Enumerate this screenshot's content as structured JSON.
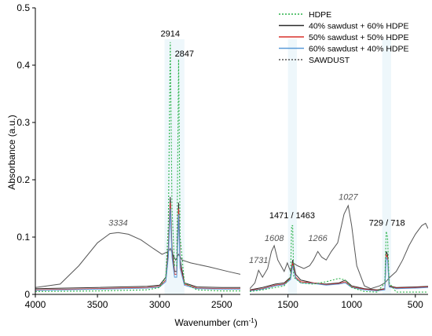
{
  "chart_data": {
    "type": "line",
    "xlabel": "Wavenumber (cm",
    "xlabel_sup": "-1",
    "xlabel_end": ")",
    "ylabel": "Absorbance (a.u.)",
    "ylim": [
      0,
      0.5
    ],
    "y_ticks": [
      "0",
      "0.1",
      "0.2",
      "0.3",
      "0.4",
      "0.5"
    ],
    "y_tick_values": [
      0,
      0.1,
      0.2,
      0.3,
      0.4,
      0.5
    ],
    "x_axis_reversed": true,
    "panels": [
      {
        "xlim": [
          4000,
          2350
        ],
        "x_ticks": [
          "4000",
          "3500",
          "3000",
          "2500"
        ],
        "x_tick_values": [
          4000,
          3500,
          3000,
          2500
        ]
      },
      {
        "xlim": [
          1800,
          400
        ],
        "x_ticks": [
          "1500",
          "1000",
          "500"
        ],
        "x_tick_values": [
          1500,
          1000,
          500
        ]
      }
    ],
    "legend_position": "top-right",
    "series": [
      {
        "name": "HDPE",
        "color": "#2bb24a",
        "dash": "dotted",
        "points": [
          [
            4000,
            0.005
          ],
          [
            3500,
            0.006
          ],
          [
            3100,
            0.008
          ],
          [
            3000,
            0.012
          ],
          [
            2950,
            0.03
          ],
          [
            2930,
            0.12
          ],
          [
            2914,
            0.44
          ],
          [
            2900,
            0.15
          ],
          [
            2880,
            0.05
          ],
          [
            2862,
            0.05
          ],
          [
            2847,
            0.41
          ],
          [
            2835,
            0.1
          ],
          [
            2800,
            0.02
          ],
          [
            2700,
            0.008
          ],
          [
            2500,
            0.006
          ],
          [
            2350,
            0.006
          ],
          [
            1800,
            0.005
          ],
          [
            1700,
            0.008
          ],
          [
            1600,
            0.012
          ],
          [
            1530,
            0.015
          ],
          [
            1480,
            0.03
          ],
          [
            1471,
            0.12
          ],
          [
            1463,
            0.12
          ],
          [
            1455,
            0.03
          ],
          [
            1400,
            0.02
          ],
          [
            1300,
            0.018
          ],
          [
            1200,
            0.022
          ],
          [
            1100,
            0.028
          ],
          [
            1050,
            0.025
          ],
          [
            1000,
            0.012
          ],
          [
            900,
            0.005
          ],
          [
            800,
            0.004
          ],
          [
            740,
            0.02
          ],
          [
            729,
            0.11
          ],
          [
            718,
            0.1
          ],
          [
            705,
            0.02
          ],
          [
            650,
            0.004
          ],
          [
            500,
            0.004
          ],
          [
            400,
            0.004
          ]
        ]
      },
      {
        "name": "40% sawdust + 60% HDPE",
        "color": "#2b2b2b",
        "dash": "solid",
        "points": [
          [
            4000,
            0.01
          ],
          [
            3500,
            0.012
          ],
          [
            3100,
            0.014
          ],
          [
            3000,
            0.016
          ],
          [
            2950,
            0.03
          ],
          [
            2930,
            0.08
          ],
          [
            2914,
            0.17
          ],
          [
            2900,
            0.08
          ],
          [
            2880,
            0.04
          ],
          [
            2862,
            0.04
          ],
          [
            2847,
            0.16
          ],
          [
            2835,
            0.06
          ],
          [
            2800,
            0.02
          ],
          [
            2700,
            0.013
          ],
          [
            2500,
            0.012
          ],
          [
            2350,
            0.012
          ],
          [
            1800,
            0.008
          ],
          [
            1700,
            0.012
          ],
          [
            1600,
            0.018
          ],
          [
            1530,
            0.02
          ],
          [
            1480,
            0.03
          ],
          [
            1463,
            0.06
          ],
          [
            1440,
            0.035
          ],
          [
            1400,
            0.025
          ],
          [
            1300,
            0.02
          ],
          [
            1200,
            0.018
          ],
          [
            1100,
            0.02
          ],
          [
            1050,
            0.025
          ],
          [
            1000,
            0.015
          ],
          [
            900,
            0.01
          ],
          [
            800,
            0.008
          ],
          [
            740,
            0.01
          ],
          [
            729,
            0.075
          ],
          [
            718,
            0.07
          ],
          [
            705,
            0.015
          ],
          [
            650,
            0.012
          ],
          [
            500,
            0.013
          ],
          [
            400,
            0.014
          ]
        ]
      },
      {
        "name": "50% sawdust + 50% HDPE",
        "color": "#d9302a",
        "dash": "solid",
        "points": [
          [
            4000,
            0.008
          ],
          [
            3500,
            0.01
          ],
          [
            3100,
            0.012
          ],
          [
            3000,
            0.014
          ],
          [
            2950,
            0.025
          ],
          [
            2930,
            0.07
          ],
          [
            2914,
            0.16
          ],
          [
            2900,
            0.07
          ],
          [
            2880,
            0.035
          ],
          [
            2862,
            0.035
          ],
          [
            2847,
            0.15
          ],
          [
            2835,
            0.05
          ],
          [
            2800,
            0.018
          ],
          [
            2700,
            0.011
          ],
          [
            2500,
            0.01
          ],
          [
            2350,
            0.01
          ],
          [
            1800,
            0.007
          ],
          [
            1700,
            0.01
          ],
          [
            1600,
            0.016
          ],
          [
            1530,
            0.018
          ],
          [
            1480,
            0.028
          ],
          [
            1463,
            0.055
          ],
          [
            1440,
            0.03
          ],
          [
            1400,
            0.022
          ],
          [
            1300,
            0.02
          ],
          [
            1200,
            0.017
          ],
          [
            1100,
            0.019
          ],
          [
            1050,
            0.022
          ],
          [
            1000,
            0.013
          ],
          [
            900,
            0.009
          ],
          [
            800,
            0.007
          ],
          [
            740,
            0.009
          ],
          [
            729,
            0.07
          ],
          [
            718,
            0.065
          ],
          [
            705,
            0.014
          ],
          [
            650,
            0.011
          ],
          [
            500,
            0.012
          ],
          [
            400,
            0.013
          ]
        ]
      },
      {
        "name": "60% sawdust + 40% HDPE",
        "color": "#5a9bd8",
        "dash": "solid",
        "points": [
          [
            4000,
            0.007
          ],
          [
            3500,
            0.009
          ],
          [
            3100,
            0.011
          ],
          [
            3000,
            0.013
          ],
          [
            2950,
            0.022
          ],
          [
            2930,
            0.065
          ],
          [
            2914,
            0.15
          ],
          [
            2900,
            0.065
          ],
          [
            2880,
            0.03
          ],
          [
            2862,
            0.03
          ],
          [
            2847,
            0.14
          ],
          [
            2835,
            0.045
          ],
          [
            2800,
            0.016
          ],
          [
            2700,
            0.01
          ],
          [
            2500,
            0.009
          ],
          [
            2350,
            0.009
          ],
          [
            1800,
            0.006
          ],
          [
            1700,
            0.009
          ],
          [
            1600,
            0.015
          ],
          [
            1530,
            0.017
          ],
          [
            1480,
            0.026
          ],
          [
            1463,
            0.05
          ],
          [
            1440,
            0.028
          ],
          [
            1400,
            0.02
          ],
          [
            1300,
            0.019
          ],
          [
            1200,
            0.016
          ],
          [
            1100,
            0.018
          ],
          [
            1050,
            0.02
          ],
          [
            1000,
            0.012
          ],
          [
            900,
            0.008
          ],
          [
            800,
            0.006
          ],
          [
            740,
            0.008
          ],
          [
            729,
            0.065
          ],
          [
            718,
            0.06
          ],
          [
            705,
            0.013
          ],
          [
            650,
            0.01
          ],
          [
            500,
            0.011
          ],
          [
            400,
            0.012
          ]
        ]
      },
      {
        "name": "SAWDUST",
        "color": "#555555",
        "dash": "solid",
        "points": [
          [
            4000,
            0.012
          ],
          [
            3800,
            0.018
          ],
          [
            3650,
            0.05
          ],
          [
            3500,
            0.09
          ],
          [
            3400,
            0.106
          ],
          [
            3334,
            0.108
          ],
          [
            3250,
            0.105
          ],
          [
            3150,
            0.095
          ],
          [
            3050,
            0.08
          ],
          [
            2980,
            0.07
          ],
          [
            2930,
            0.075
          ],
          [
            2914,
            0.08
          ],
          [
            2895,
            0.07
          ],
          [
            2870,
            0.06
          ],
          [
            2847,
            0.07
          ],
          [
            2820,
            0.06
          ],
          [
            2750,
            0.055
          ],
          [
            2600,
            0.048
          ],
          [
            2450,
            0.04
          ],
          [
            2350,
            0.035
          ],
          [
            1800,
            0.01
          ],
          [
            1760,
            0.02
          ],
          [
            1731,
            0.042
          ],
          [
            1700,
            0.03
          ],
          [
            1660,
            0.045
          ],
          [
            1630,
            0.075
          ],
          [
            1608,
            0.085
          ],
          [
            1580,
            0.06
          ],
          [
            1530,
            0.04
          ],
          [
            1505,
            0.055
          ],
          [
            1480,
            0.04
          ],
          [
            1460,
            0.055
          ],
          [
            1425,
            0.05
          ],
          [
            1375,
            0.045
          ],
          [
            1330,
            0.05
          ],
          [
            1300,
            0.06
          ],
          [
            1266,
            0.075
          ],
          [
            1235,
            0.065
          ],
          [
            1200,
            0.06
          ],
          [
            1160,
            0.075
          ],
          [
            1110,
            0.09
          ],
          [
            1060,
            0.14
          ],
          [
            1027,
            0.155
          ],
          [
            1000,
            0.12
          ],
          [
            960,
            0.05
          ],
          [
            900,
            0.015
          ],
          [
            850,
            0.01
          ],
          [
            780,
            0.015
          ],
          [
            740,
            0.02
          ],
          [
            720,
            0.025
          ],
          [
            700,
            0.03
          ],
          [
            650,
            0.04
          ],
          [
            600,
            0.06
          ],
          [
            550,
            0.085
          ],
          [
            500,
            0.105
          ],
          [
            450,
            0.12
          ],
          [
            420,
            0.124
          ],
          [
            400,
            0.115
          ]
        ]
      }
    ],
    "annotations": [
      {
        "text": "2914",
        "x": 2914,
        "y": 0.45,
        "panel": 0,
        "style": "plain"
      },
      {
        "text": "2847",
        "x": 2800,
        "y": 0.415,
        "panel": 0,
        "style": "plain"
      },
      {
        "text": "3334",
        "x": 3334,
        "y": 0.12,
        "panel": 0,
        "style": "italic"
      },
      {
        "text": "1471 / 1463",
        "x": 1467,
        "y": 0.133,
        "panel": 1,
        "style": "plain"
      },
      {
        "text": "1027",
        "x": 1027,
        "y": 0.165,
        "panel": 1,
        "style": "italic"
      },
      {
        "text": "1608",
        "x": 1608,
        "y": 0.093,
        "panel": 1,
        "style": "italic"
      },
      {
        "text": "1266",
        "x": 1266,
        "y": 0.093,
        "panel": 1,
        "style": "italic"
      },
      {
        "text": "1731",
        "x": 1731,
        "y": 0.055,
        "panel": 1,
        "style": "italic"
      },
      {
        "text": "729 / 718",
        "x": 723,
        "y": 0.12,
        "panel": 1,
        "style": "plain"
      }
    ]
  }
}
